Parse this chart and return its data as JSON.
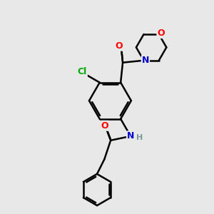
{
  "bg_color": "#e8e8e8",
  "line_color": "#000000",
  "bond_width": 1.8,
  "atom_colors": {
    "O": "#ff0000",
    "N": "#0000cc",
    "Cl": "#00aa00",
    "H": "#7a9a9a"
  },
  "figsize": [
    3.0,
    3.0
  ],
  "dpi": 100
}
